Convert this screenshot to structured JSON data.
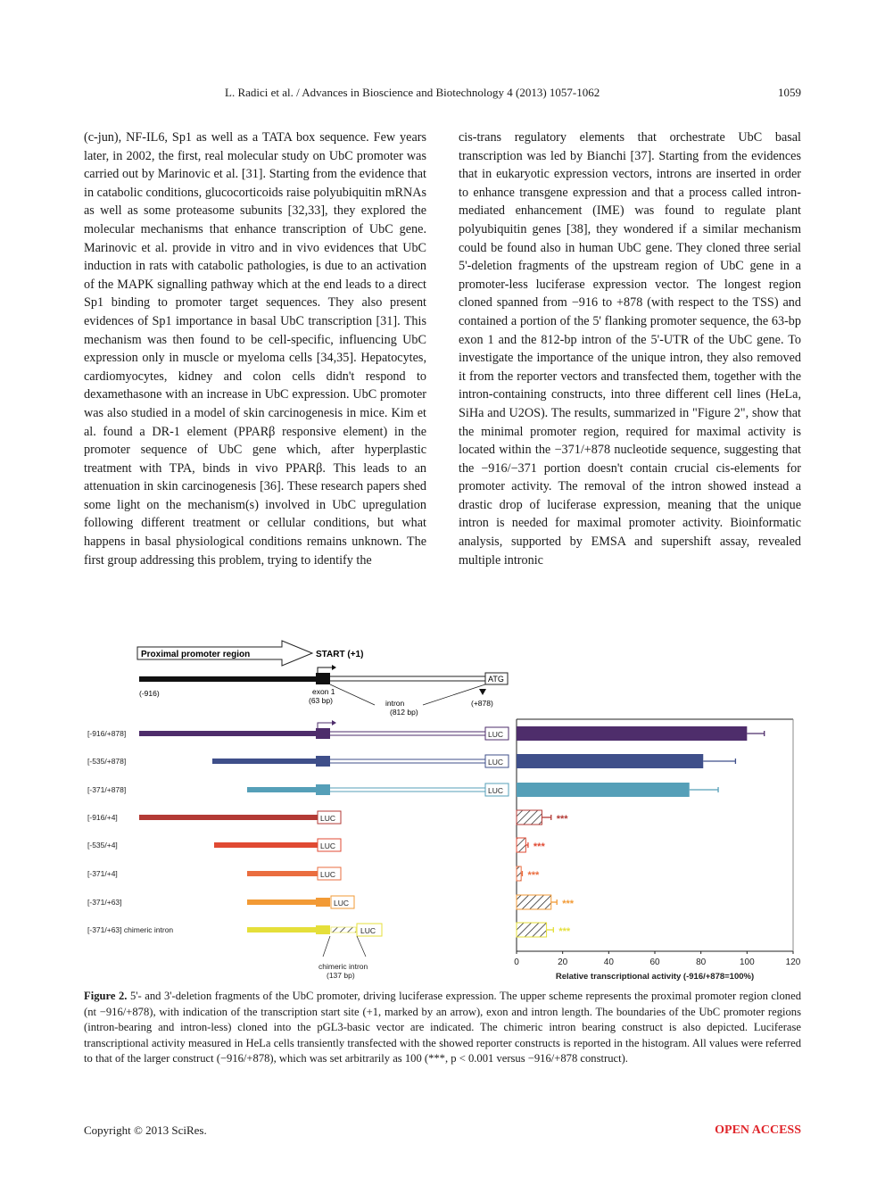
{
  "header": {
    "running_title": "L. Radici et al. / Advances in Bioscience and Biotechnology 4 (2013) 1057-1062",
    "page_number": "1059"
  },
  "body": {
    "left_column": "(c-jun), NF-IL6, Sp1 as well as a TATA box sequence. Few years later, in 2002, the first, real molecular study on UbC promoter was carried out by Marinovic et al. [31]. Starting from the evidence that in catabolic conditions, glucocorticoids raise polyubiquitin mRNAs as well as some proteasome subunits [32,33], they explored the molecular mechanisms that enhance transcription of UbC gene. Marinovic et al. provide in vitro and in vivo evidences that UbC induction in rats with catabolic pathologies, is due to an activation of the MAPK signalling pathway which at the end leads to a direct Sp1 binding to promoter target sequences. They also present evidences of Sp1 importance in basal UbC transcription [31]. This mechanism was then found to be cell-specific, influencing UbC expression only in muscle or myeloma cells [34,35]. Hepatocytes, cardiomyocytes, kidney and colon cells didn't respond to dexamethasone with an increase in UbC expression. UbC promoter was also studied in a model of skin carcinogenesis in mice. Kim et al. found a DR-1 element (PPARβ responsive element) in the promoter sequence of UbC gene which, after hyperplastic treatment with TPA, binds in vivo PPARβ. This leads to an attenuation in skin carcinogenesis [36]. These research papers shed some light on the mechanism(s) involved in UbC upregulation following different treatment or cellular conditions, but what happens in basal physiological conditions remains unknown. The first group addressing this problem, trying to identify the",
    "right_column": "cis-trans regulatory elements that orchestrate UbC basal transcription was led by Bianchi [37]. Starting from the evidences that in eukaryotic expression vectors, introns are inserted in order to enhance transgene expression and that a process called intron-mediated enhancement (IME) was found to regulate plant polyubiquitin genes [38], they wondered if a similar mechanism could be found also in human UbC gene. They cloned three serial 5'-deletion fragments of the upstream region of UbC gene in a promoter-less luciferase expression vector. The longest region cloned spanned from −916 to +878 (with respect to the TSS) and contained a portion of the 5' flanking promoter sequence, the 63-bp exon 1 and the 812-bp intron of the 5'-UTR of the UbC gene. To investigate the importance of the unique intron, they also removed it from the reporter vectors and transfected them, together with the intron-containing constructs, into three different cell lines (HeLa, SiHa and U2OS). The results, summarized in \"Figure 2\", show that the minimal promoter region, required for maximal activity is located within the −371/+878 nucleotide sequence, suggesting that the −916/−371 portion doesn't contain crucial cis-elements for promoter activity. The removal of the intron showed instead a drastic drop of luciferase expression, meaning that the unique intron is needed for maximal promoter activity. Bioinformatic analysis, supported by EMSA and supershift assay, revealed multiple intronic"
  },
  "figure": {
    "scheme": {
      "arrow_label": "Proximal promoter region",
      "start_label": "START (+1)",
      "left_pos": "(-916)",
      "exon_label": "exon 1",
      "exon_size": "(63 bp)",
      "intron_label": "intron",
      "intron_size": "(812 bp)",
      "atg_label": "ATG",
      "right_pos": "(+878)",
      "chimeric_label": "chimeric intron",
      "chimeric_size": "(137 bp)",
      "luc_label": "LUC"
    },
    "constructs": [
      {
        "label": "[-916/+878]",
        "color": "#4e2d6b"
      },
      {
        "label": "[-535/+878]",
        "color": "#3f4f8a"
      },
      {
        "label": "[-371/+878]",
        "color": "#559fb8"
      },
      {
        "label": "[-916/+4]",
        "color": "#b33a35"
      },
      {
        "label": "[-535/+4]",
        "color": "#e04a33"
      },
      {
        "label": "[-371/+4]",
        "color": "#ea6d3f"
      },
      {
        "label": "[-371/+63]",
        "color": "#f29a35"
      },
      {
        "label": "[-371/+63] chimeric intron",
        "color": "#e5df3a"
      }
    ],
    "significance_marker": "***"
  },
  "chart_data": {
    "type": "bar",
    "orientation": "horizontal",
    "categories": [
      "[-916/+878]",
      "[-535/+878]",
      "[-371/+878]",
      "[-916/+4]",
      "[-535/+4]",
      "[-371/+4]",
      "[-371/+63]",
      "[-371/+63] chimeric intron"
    ],
    "values": [
      100,
      81,
      75,
      11,
      4,
      2,
      15,
      13
    ],
    "error_upper": [
      107.5,
      95,
      87.5,
      15,
      5,
      2.5,
      17.5,
      16
    ],
    "significance": [
      "",
      "",
      "",
      "***",
      "***",
      "***",
      "***",
      "***"
    ],
    "hatched": [
      false,
      false,
      false,
      true,
      true,
      true,
      true,
      true
    ],
    "colors": [
      "#4e2d6b",
      "#3f4f8a",
      "#559fb8",
      "#b33a35",
      "#e04a33",
      "#ea6d3f",
      "#f29a35",
      "#e5df3a"
    ],
    "title": "",
    "xlabel": "Relative transcriptional activity (-916/+878=100%)",
    "ylabel": "",
    "xlim": [
      0,
      120
    ],
    "xticks": [
      "0",
      "20",
      "40",
      "60",
      "80",
      "100",
      "120"
    ],
    "grid": false
  },
  "caption": {
    "label": "Figure 2.",
    "text": " 5'- and 3'-deletion fragments of the UbC promoter, driving luciferase expression. The upper scheme represents the proximal promoter region cloned (nt −916/+878), with indication of the transcription start site (+1, marked by an arrow), exon and intron length. The boundaries of the UbC promoter regions (intron-bearing and intron-less) cloned into the pGL3-basic vector are indicated. The chimeric intron bearing construct is also depicted. Luciferase transcriptional activity measured in HeLa cells transiently transfected with the showed reporter constructs is reported in the histogram. All values were referred to that of the larger construct (−916/+878), which was set arbitrarily as 100 (***, p < 0.001 versus −916/+878 construct)."
  },
  "footer": {
    "copyright": "Copyright © 2013 SciRes.",
    "open_access": "OPEN ACCESS"
  }
}
